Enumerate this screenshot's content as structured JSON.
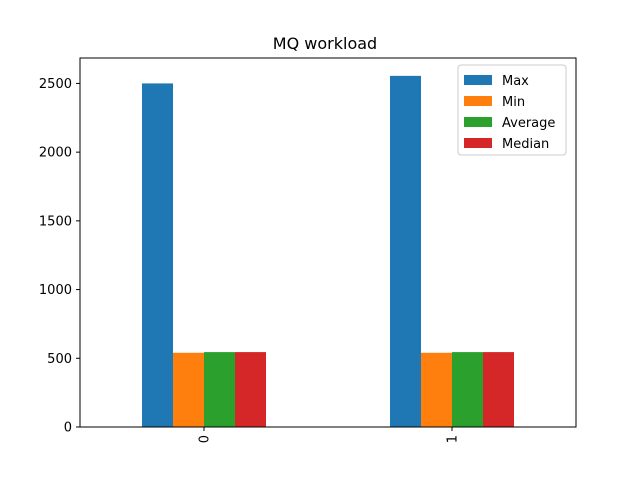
{
  "chart_data": {
    "type": "bar",
    "title": "MQ workload",
    "xlabel": "",
    "ylabel": "",
    "categories": [
      "0",
      "1"
    ],
    "series": [
      {
        "name": "Max",
        "color": "#1f77b4",
        "values": [
          2500,
          2555
        ]
      },
      {
        "name": "Min",
        "color": "#ff7f0e",
        "values": [
          540,
          540
        ]
      },
      {
        "name": "Average",
        "color": "#2ca02c",
        "values": [
          545,
          545
        ]
      },
      {
        "name": "Median",
        "color": "#d62728",
        "values": [
          545,
          545
        ]
      }
    ],
    "ylim": [
      0,
      2685
    ],
    "yticks": [
      0,
      500,
      1000,
      1500,
      2000,
      2500
    ],
    "xtick_rotation": "vertical",
    "legend_position": "top-right",
    "grid": false
  }
}
